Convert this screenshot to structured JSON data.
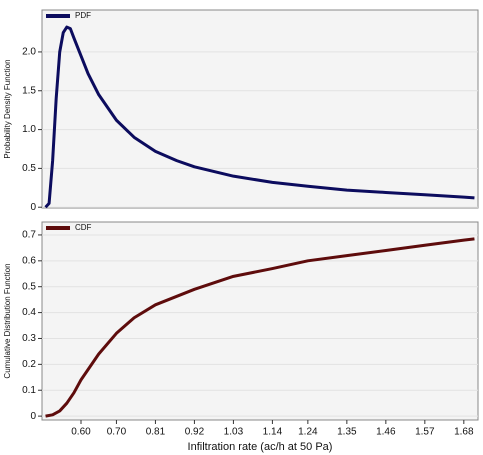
{
  "chart_data": [
    {
      "type": "line",
      "ylabel": "Probability Density Function",
      "x": [
        0.5,
        0.51,
        0.52,
        0.53,
        0.54,
        0.55,
        0.56,
        0.57,
        0.58,
        0.6,
        0.62,
        0.65,
        0.7,
        0.75,
        0.81,
        0.87,
        0.92,
        1.03,
        1.14,
        1.24,
        1.35,
        1.46,
        1.57,
        1.68,
        1.71
      ],
      "series": [
        {
          "name": "PDF",
          "color": "#0c0c5e",
          "values": [
            0,
            0.05,
            0.6,
            1.4,
            2.0,
            2.25,
            2.32,
            2.3,
            2.18,
            1.95,
            1.72,
            1.45,
            1.12,
            0.9,
            0.72,
            0.6,
            0.52,
            0.4,
            0.32,
            0.27,
            0.22,
            0.19,
            0.16,
            0.13,
            0.12
          ]
        }
      ],
      "xlim": [
        0.49,
        1.72
      ],
      "ylim": [
        -0.01,
        2.54
      ],
      "yticks": [
        0,
        0.5,
        {
          "value": 1.0,
          "label": "1.0"
        },
        1.5,
        {
          "value": 2.0,
          "label": "2.0"
        }
      ],
      "grid": true
    },
    {
      "type": "line",
      "ylabel": "Cumulative Distribution Function",
      "xlabel": "Infiltration rate (ac/h at 50 Pa)",
      "x": [
        0.5,
        0.52,
        0.54,
        0.56,
        0.58,
        0.6,
        0.65,
        0.7,
        0.75,
        0.81,
        0.92,
        1.03,
        1.14,
        1.24,
        1.35,
        1.46,
        1.57,
        1.68,
        1.71
      ],
      "series": [
        {
          "name": "CDF",
          "color": "#5e0c0c",
          "values": [
            0,
            0.005,
            0.02,
            0.05,
            0.09,
            0.14,
            0.24,
            0.32,
            0.38,
            0.43,
            0.49,
            0.54,
            0.57,
            0.6,
            0.62,
            0.64,
            0.66,
            0.68,
            0.685
          ]
        }
      ],
      "xlim": [
        0.49,
        1.72
      ],
      "ylim": [
        -0.015,
        0.75
      ],
      "xticks": [
        {
          "value": 0.6,
          "label": "0.60"
        },
        {
          "value": 0.7,
          "label": "0.70"
        },
        0.81,
        0.92,
        1.03,
        1.14,
        1.24,
        1.35,
        1.46,
        1.57,
        1.68
      ],
      "yticks": [
        0,
        0.1,
        0.2,
        0.3,
        0.4,
        0.5,
        0.6,
        0.7
      ],
      "grid": true
    }
  ]
}
